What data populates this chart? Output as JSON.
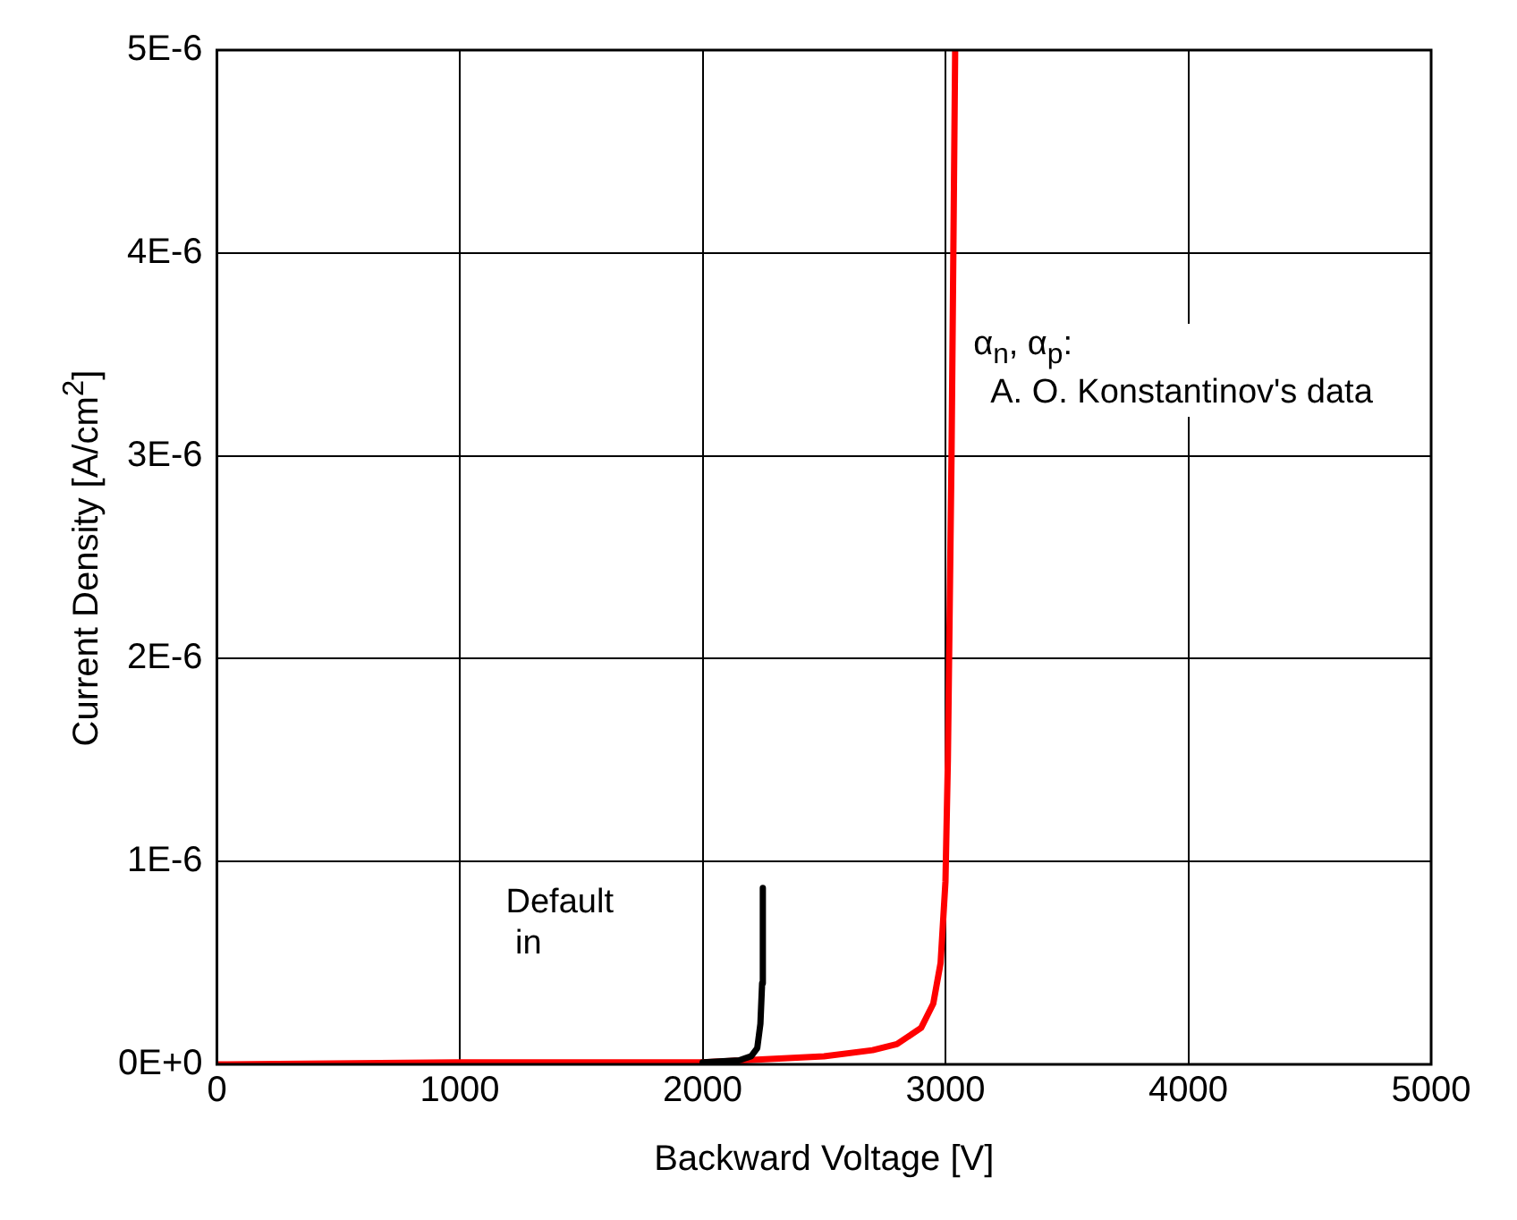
{
  "chart_data": {
    "type": "line",
    "xlabel": "Backward Voltage [V]",
    "ylabel": "Current Density [A/cm$^{2}$]",
    "xlim": [
      0,
      5000
    ],
    "xticks": [
      0,
      1000,
      2000,
      3000,
      4000,
      5000
    ],
    "ylim": [
      0,
      5e-06
    ],
    "yticks": [
      {
        "value": 0,
        "label": "0E+0"
      },
      {
        "value": 1e-06,
        "label": "1E-6"
      },
      {
        "value": 2e-06,
        "label": "2E-6"
      },
      {
        "value": 3e-06,
        "label": "3E-6"
      },
      {
        "value": 4e-06,
        "label": "4E-6"
      },
      {
        "value": 5e-06,
        "label": "5E-6"
      }
    ],
    "grid": true,
    "marker": "none",
    "line_style": "solid",
    "series": [
      {
        "color": "#000000",
        "x": [
          2000,
          2150,
          2200,
          2225,
          2238,
          2245,
          2248
        ],
        "values": [
          1e-08,
          2e-08,
          4e-08,
          8e-08,
          2e-07,
          4e-07,
          8.7e-07
        ]
      },
      {
        "color": "#ff0000",
        "x": [
          0,
          1000,
          2000,
          2500,
          2700,
          2800,
          2900,
          2950,
          2980,
          3000,
          3010,
          3025,
          3040
        ],
        "values": [
          0,
          1e-08,
          1e-08,
          4e-08,
          7e-08,
          1e-07,
          1.8e-07,
          3e-07,
          5e-07,
          9e-07,
          1.5e-06,
          3e-06,
          5e-06
        ]
      }
    ],
    "annotations": [
      "Default\n in",
      "α$_{n}$, α$_{p}$:\n  A. O. Konstantinov's data"
    ]
  }
}
